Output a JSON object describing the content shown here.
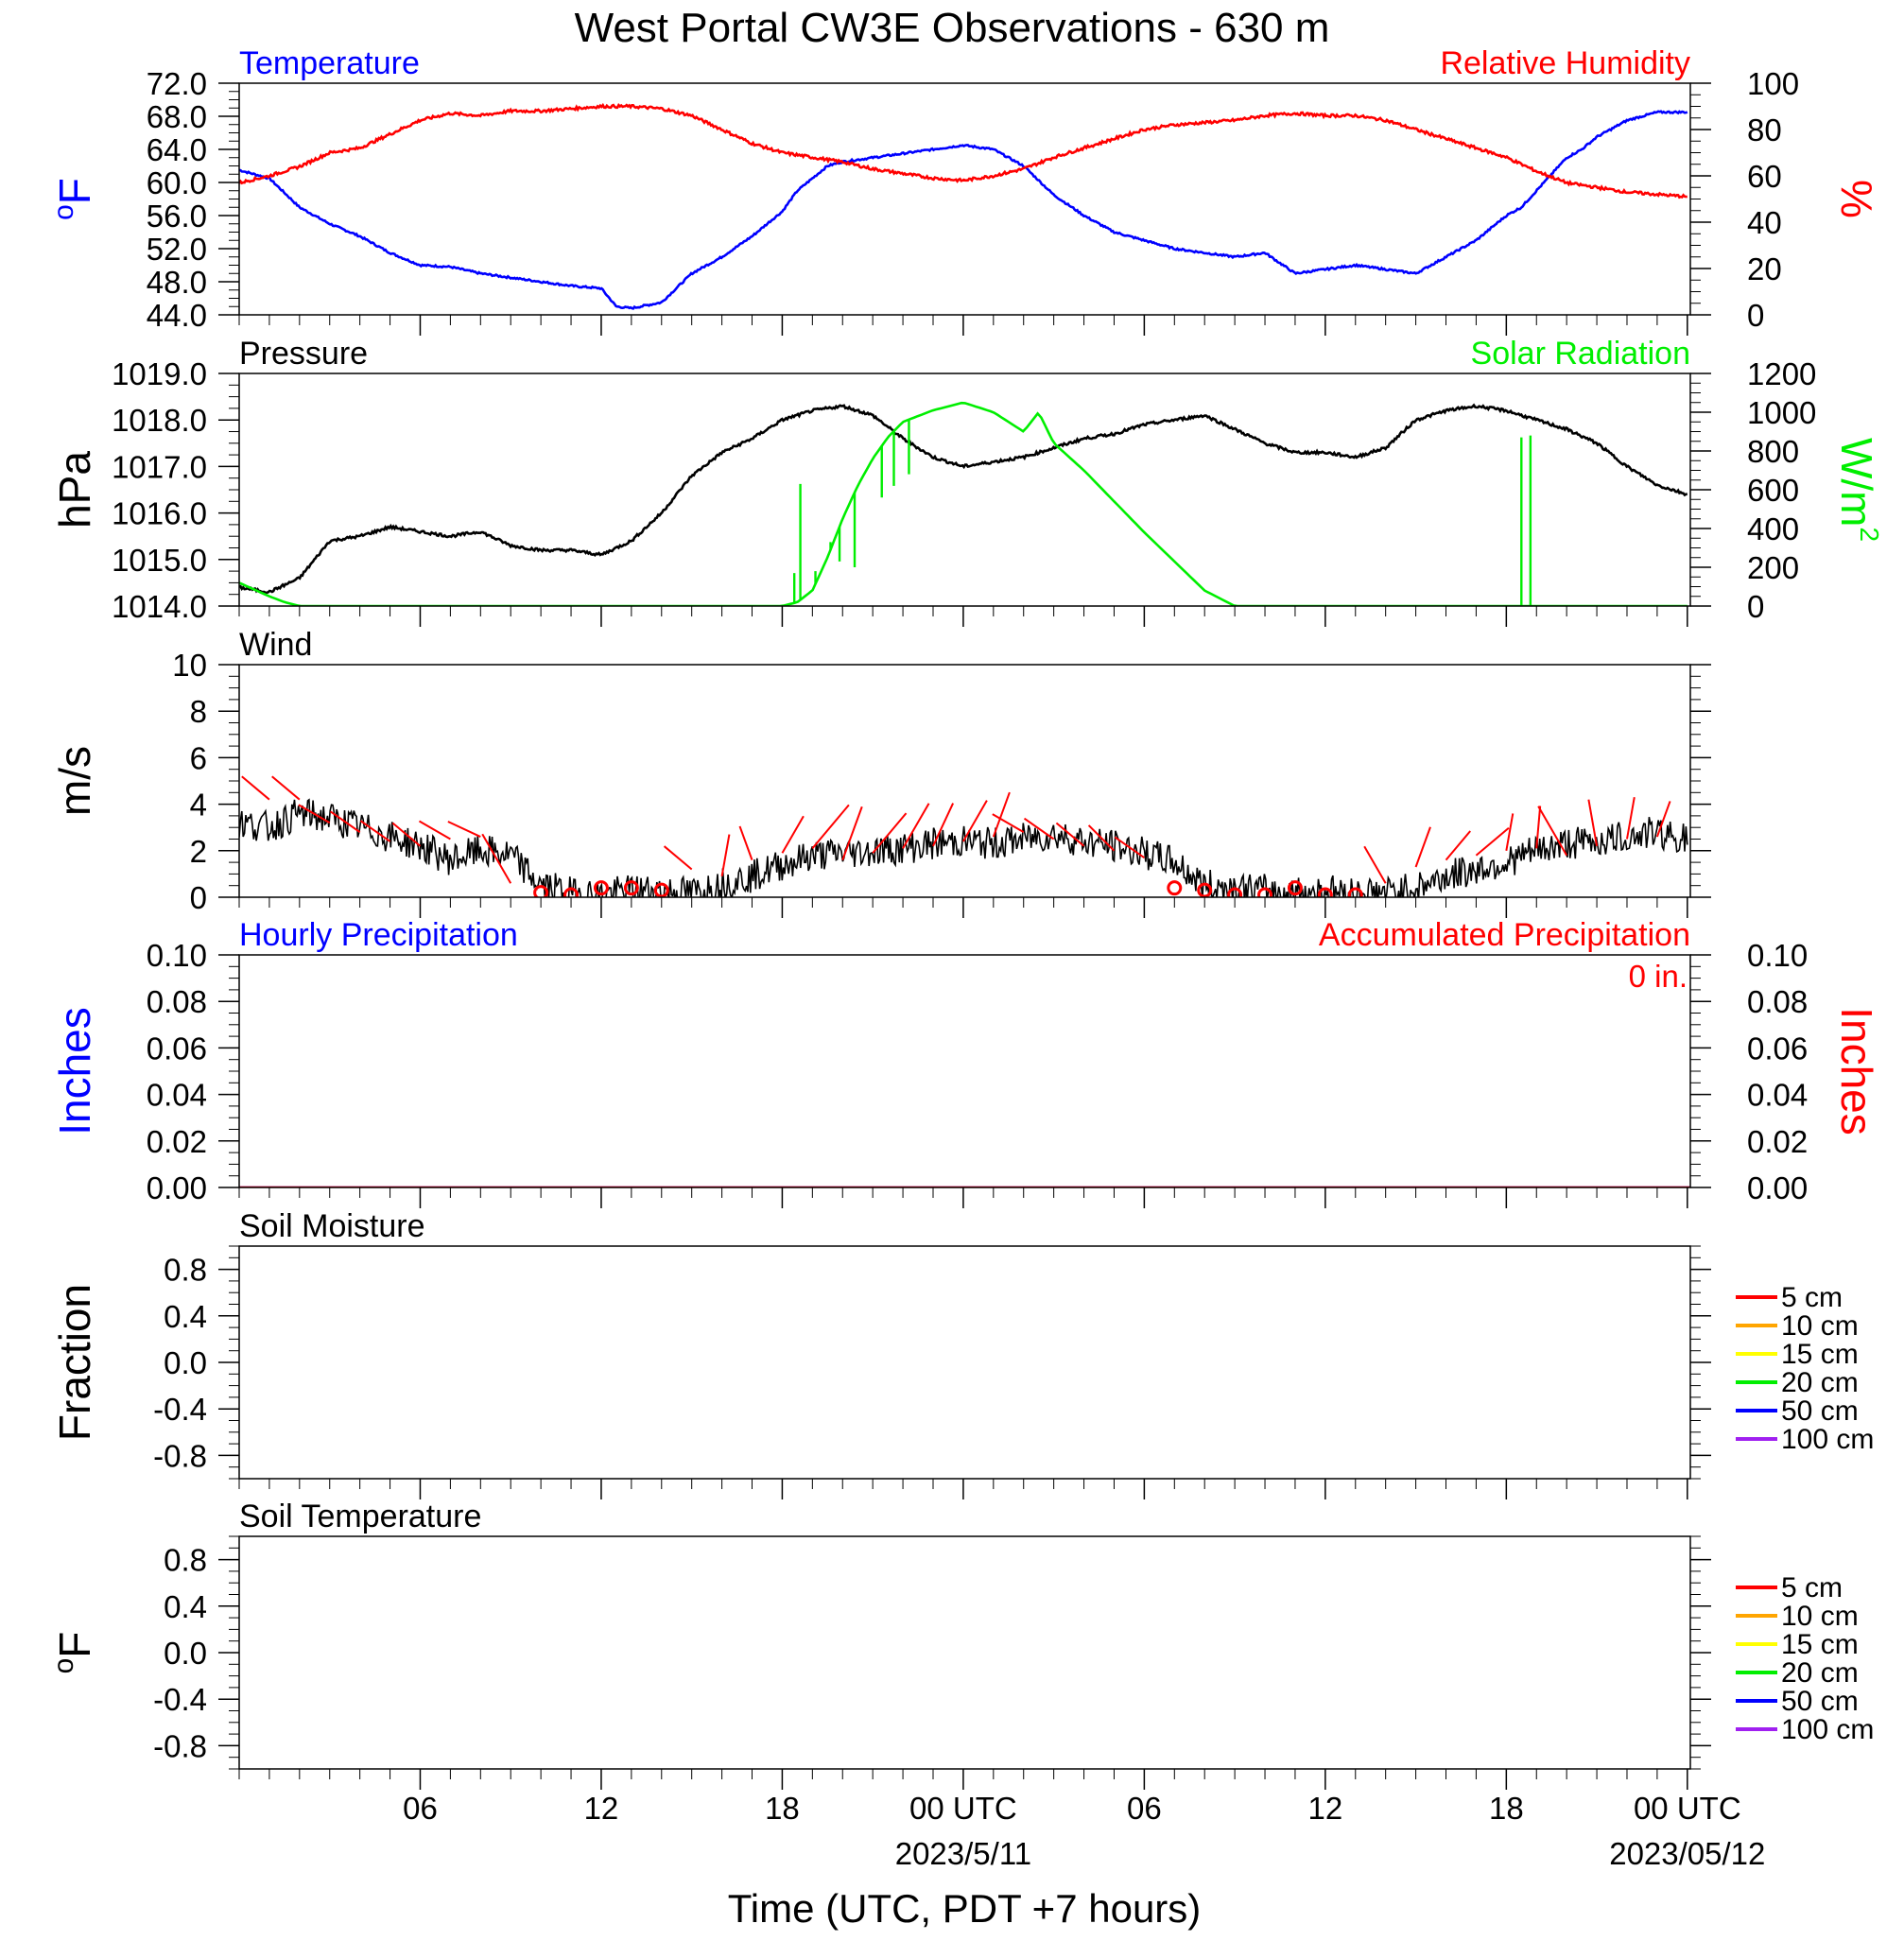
{
  "title": "West Portal CW3E Observations - 630 m",
  "x_axis": {
    "title": "Time (UTC, PDT +7 hours)",
    "ticks": [
      {
        "hour": 6,
        "label": "06"
      },
      {
        "hour": 12,
        "label": "12"
      },
      {
        "hour": 18,
        "label": "18"
      },
      {
        "hour": 24,
        "label": "00 UTC",
        "sub": "2023/5/11"
      },
      {
        "hour": 30,
        "label": "06"
      },
      {
        "hour": 36,
        "label": "12"
      },
      {
        "hour": 42,
        "label": "18"
      },
      {
        "hour": 48,
        "label": "00 UTC",
        "sub": "2023/05/12"
      }
    ],
    "range_hours": [
      0,
      48.1
    ]
  },
  "colors": {
    "temperature": "#0000ff",
    "humidity": "#ff0000",
    "pressure": "#000000",
    "solar": "#00ee00",
    "wind": "#000000",
    "barb": "#ff0000",
    "hourly_precip": "#0000ff",
    "accum_precip": "#ff0000"
  },
  "chart_data": [
    {
      "type": "line",
      "id": "temp-rh",
      "left_title": "Temperature",
      "right_title": "Relative Humidity",
      "left_ylabel": "oF",
      "right_ylabel": "%",
      "left_ticks": [
        "44.0",
        "48.0",
        "52.0",
        "56.0",
        "60.0",
        "64.0",
        "68.0",
        "72.0"
      ],
      "left_ylim": [
        44,
        72
      ],
      "right_ticks": [
        "0",
        "20",
        "40",
        "60",
        "80",
        "100"
      ],
      "right_ylim": [
        0,
        100
      ],
      "series": [
        {
          "name": "Temperature",
          "axis": "left",
          "color": "#0000ff",
          "x": [
            0,
            1,
            2,
            3,
            4,
            5,
            6,
            7,
            8,
            9,
            10,
            11,
            12,
            12.5,
            13,
            14,
            15,
            16,
            17,
            18,
            18.5,
            19,
            19.5,
            20,
            21,
            22,
            23,
            24,
            25,
            26,
            27,
            28,
            29,
            30,
            31,
            32,
            33,
            34,
            35,
            36,
            37,
            38,
            39,
            40,
            41,
            42,
            42.5,
            43,
            43.5,
            44,
            44.5,
            45,
            46,
            47,
            48
          ],
          "y": [
            61.5,
            60.5,
            57,
            55,
            53.5,
            51.5,
            50,
            49.8,
            49,
            48.5,
            48,
            47.5,
            47.2,
            45,
            44.8,
            45.5,
            49,
            51,
            53.5,
            56.5,
            59,
            60.5,
            62,
            62.5,
            63,
            63.5,
            64,
            64.5,
            64,
            62,
            58.5,
            56,
            54,
            53,
            52,
            51.5,
            51,
            51.5,
            49,
            49.5,
            50,
            49.5,
            49,
            51,
            53,
            56,
            57,
            59,
            61,
            63,
            64,
            65.5,
            67.5,
            68.5,
            68.5
          ]
        },
        {
          "name": "Relative Humidity",
          "axis": "right",
          "color": "#ff0000",
          "x": [
            0,
            1,
            2,
            3,
            4,
            5,
            6,
            7,
            8,
            9,
            10,
            11,
            12,
            13,
            14,
            15,
            16,
            17,
            18,
            19,
            20,
            21,
            22,
            23,
            24,
            25,
            26,
            27,
            28,
            29,
            30,
            31,
            32,
            33,
            34,
            35,
            36,
            37,
            38,
            39,
            40,
            41,
            42,
            43,
            44,
            45,
            46,
            47,
            48
          ],
          "y": [
            57,
            60,
            64,
            70,
            72,
            78,
            84,
            87,
            86,
            88,
            88,
            89,
            90,
            90,
            89,
            86,
            80,
            74,
            70,
            68,
            66,
            63,
            61,
            59,
            58,
            60,
            63,
            68,
            72,
            76,
            80,
            82,
            83,
            84,
            86,
            87,
            86,
            86,
            84,
            80,
            76,
            72,
            68,
            62,
            57,
            55,
            53,
            52,
            51
          ]
        }
      ]
    },
    {
      "type": "line",
      "id": "pressure-solar",
      "left_title": "Pressure",
      "right_title": "Solar Radiation",
      "left_ylabel": "hPa",
      "right_ylabel": "W/m",
      "right_ylabel_sup": "2",
      "left_ticks": [
        "1014.0",
        "1015.0",
        "1016.0",
        "1017.0",
        "1018.0",
        "1019.0"
      ],
      "left_ylim": [
        1014,
        1019
      ],
      "right_ticks": [
        "0",
        "200",
        "400",
        "600",
        "800",
        "1000",
        "1200"
      ],
      "right_ylim": [
        0,
        1200
      ],
      "series": [
        {
          "name": "Pressure",
          "axis": "left",
          "color": "#000000",
          "x": [
            0,
            1,
            2,
            3,
            4,
            5,
            6,
            7,
            8,
            9,
            10,
            11,
            12,
            13,
            14,
            15,
            16,
            17,
            18,
            19,
            20,
            21,
            22,
            23,
            24,
            25,
            26,
            27,
            28,
            29,
            30,
            31,
            32,
            33,
            34,
            35,
            36,
            37,
            38,
            39,
            40,
            41,
            42,
            43,
            44,
            45,
            46,
            47,
            48
          ],
          "y": [
            1014.4,
            1014.3,
            1014.6,
            1015.4,
            1015.5,
            1015.7,
            1015.6,
            1015.5,
            1015.6,
            1015.3,
            1015.2,
            1015.2,
            1015.1,
            1015.4,
            1016.0,
            1016.8,
            1017.3,
            1017.6,
            1018.0,
            1018.2,
            1018.3,
            1018.1,
            1017.6,
            1017.2,
            1017.0,
            1017.1,
            1017.2,
            1017.4,
            1017.6,
            1017.7,
            1017.9,
            1018.0,
            1018.1,
            1017.8,
            1017.5,
            1017.3,
            1017.3,
            1017.2,
            1017.4,
            1018.0,
            1018.2,
            1018.3,
            1018.2,
            1018.0,
            1017.8,
            1017.5,
            1017.0,
            1016.6,
            1016.4
          ]
        },
        {
          "name": "Solar Radiation",
          "axis": "right",
          "color": "#00ee00",
          "x": [
            0,
            1,
            1.5,
            2,
            3,
            4,
            5,
            6,
            7,
            8,
            9,
            10,
            11,
            12,
            12.5,
            13,
            14,
            15,
            16,
            17,
            17.5,
            18,
            18.5,
            19,
            19.5,
            20,
            20.5,
            21,
            21.5,
            22,
            23,
            24,
            25,
            26,
            26.5,
            27,
            28,
            29,
            30,
            31,
            32,
            33,
            34,
            35,
            36,
            36.5,
            37,
            38,
            39,
            40,
            41,
            42,
            43,
            44,
            45,
            46,
            47,
            48
          ],
          "y": [
            120,
            50,
            20,
            0,
            0,
            0,
            0,
            0,
            0,
            0,
            0,
            0,
            0,
            0,
            0,
            0,
            0,
            0,
            0,
            0,
            0,
            0,
            20,
            80,
            250,
            450,
            620,
            760,
            870,
            950,
            1010,
            1050,
            1000,
            900,
            1000,
            840,
            700,
            540,
            380,
            230,
            80,
            0,
            0,
            0,
            0,
            0,
            0,
            0,
            0,
            0,
            0,
            0,
            0,
            0,
            0,
            0,
            0,
            0
          ]
        }
      ]
    },
    {
      "type": "line",
      "id": "wind",
      "left_title": "Wind",
      "left_ylabel": "m/s",
      "left_ticks": [
        "0",
        "2",
        "4",
        "6",
        "8",
        "10"
      ],
      "left_ylim": [
        0,
        10
      ],
      "series": [
        {
          "name": "Wind",
          "axis": "left",
          "color": "#000000",
          "x": [
            0,
            1,
            2,
            3,
            4,
            5,
            6,
            7,
            8,
            9,
            10,
            11,
            12,
            13,
            14,
            15,
            16,
            17,
            18,
            19,
            20,
            21,
            22,
            23,
            24,
            25,
            26,
            27,
            28,
            29,
            30,
            31,
            32,
            33,
            34,
            35,
            36,
            37,
            38,
            39,
            40,
            41,
            42,
            43,
            44,
            45,
            46,
            47,
            48
          ],
          "y": [
            3.2,
            3.0,
            3.6,
            3.4,
            3.0,
            2.6,
            2.2,
            1.6,
            2.0,
            1.8,
            0.5,
            0.2,
            0.1,
            0.3,
            0.3,
            0.2,
            0.6,
            0.9,
            1.4,
            1.8,
            1.9,
            2.0,
            2.1,
            2.3,
            2.4,
            2.3,
            2.5,
            2.7,
            2.4,
            2.2,
            1.9,
            1.5,
            0.5,
            0.4,
            0.3,
            0.2,
            0.3,
            0.2,
            0.2,
            0.4,
            0.9,
            1.2,
            1.5,
            2.0,
            2.3,
            2.4,
            2.6,
            2.8,
            2.5
          ]
        },
        {
          "name": "barbs",
          "axis": "left",
          "color": "#ff0000",
          "hours": [
            1,
            2,
            3,
            4,
            5,
            6,
            7,
            8,
            9,
            10,
            11,
            12,
            13,
            14,
            15,
            16,
            17,
            18,
            19,
            20,
            21,
            22,
            23,
            24,
            25,
            26,
            27,
            28,
            29,
            30,
            31,
            32,
            33,
            34,
            35,
            36,
            37,
            38,
            39,
            40,
            41,
            42,
            43,
            44,
            45,
            46,
            47
          ],
          "speeds": [
            4.2,
            4.2,
            3.2,
            2.8,
            2.4,
            2.2,
            2.5,
            2.6,
            0.6,
            0.2,
            0.1,
            0.4,
            0.4,
            0.3,
            1.2,
            0.9,
            1.6,
            1.9,
            2.1,
            1.6,
            1.9,
            2.1,
            2.2,
            2.4,
            2.6,
            2.8,
            2.5,
            2.2,
            2.0,
            1.7,
            0.4,
            0.3,
            0.1,
            0.1,
            0.4,
            0.1,
            0.1,
            0.6,
            1.3,
            1.6,
            1.8,
            2.0,
            2.1,
            1.8,
            2.2,
            2.5,
            2.6
          ],
          "calm": [
            false,
            false,
            false,
            false,
            false,
            false,
            false,
            false,
            false,
            true,
            true,
            true,
            true,
            true,
            false,
            false,
            false,
            false,
            false,
            false,
            false,
            false,
            false,
            false,
            false,
            false,
            false,
            false,
            false,
            false,
            true,
            true,
            true,
            true,
            true,
            true,
            true,
            false,
            false,
            false,
            false,
            false,
            false,
            false,
            false,
            false,
            false
          ],
          "angles": [
            40,
            40,
            30,
            35,
            35,
            40,
            30,
            25,
            60,
            0,
            0,
            0,
            0,
            0,
            40,
            100,
            70,
            120,
            130,
            110,
            130,
            120,
            115,
            120,
            110,
            30,
            35,
            40,
            45,
            35,
            0,
            0,
            0,
            0,
            0,
            0,
            0,
            60,
            110,
            130,
            140,
            100,
            95,
            60,
            80,
            100,
            110
          ],
          "lengths": [
            38,
            38,
            38,
            38,
            38,
            38,
            38,
            38,
            60,
            0,
            0,
            0,
            0,
            0,
            38,
            45,
            38,
            45,
            60,
            60,
            55,
            55,
            50,
            50,
            50,
            38,
            38,
            38,
            38,
            38,
            0,
            0,
            0,
            0,
            0,
            0,
            0,
            45,
            45,
            40,
            45,
            40,
            45,
            60,
            50,
            45,
            40
          ]
        }
      ]
    },
    {
      "type": "line",
      "id": "precip",
      "left_title": "Hourly Precipitation",
      "right_title": "Accumulated Precipitation",
      "annotation": "0 in.",
      "left_ylabel": "Inches",
      "right_ylabel": "Inches",
      "left_ticks": [
        "0.00",
        "0.02",
        "0.04",
        "0.06",
        "0.08",
        "0.10"
      ],
      "left_ylim": [
        0,
        0.1
      ],
      "right_ticks": [
        "0.00",
        "0.02",
        "0.04",
        "0.06",
        "0.08",
        "0.10"
      ],
      "right_ylim": [
        0,
        0.1
      ],
      "series": [
        {
          "name": "Hourly Precipitation",
          "axis": "left",
          "color": "#0000ff",
          "x": [
            0,
            48.1
          ],
          "y": [
            0,
            0
          ]
        },
        {
          "name": "Accumulated Precipitation",
          "axis": "right",
          "color": "#ff0000",
          "x": [
            0,
            48.1
          ],
          "y": [
            0,
            0
          ]
        }
      ]
    },
    {
      "type": "line",
      "id": "soil-moisture",
      "left_title": "Soil Moisture",
      "left_ylabel": "Fraction",
      "left_ticks": [
        "-0.8",
        "-0.4",
        "0.0",
        "0.4",
        "0.8"
      ],
      "left_ylim": [
        -1,
        1
      ],
      "legend": [
        {
          "label": "5 cm",
          "color": "#ff0000"
        },
        {
          "label": "10 cm",
          "color": "#ffa500"
        },
        {
          "label": "15 cm",
          "color": "#ffff00"
        },
        {
          "label": "20 cm",
          "color": "#00ee00"
        },
        {
          "label": "50 cm",
          "color": "#0000ff"
        },
        {
          "label": "100 cm",
          "color": "#a020f0"
        }
      ],
      "series": []
    },
    {
      "type": "line",
      "id": "soil-temperature",
      "left_title": "Soil Temperature",
      "left_ylabel": "oF",
      "left_ticks": [
        "-0.8",
        "-0.4",
        "0.0",
        "0.4",
        "0.8"
      ],
      "left_ylim": [
        -1,
        1
      ],
      "legend": [
        {
          "label": "5 cm",
          "color": "#ff0000"
        },
        {
          "label": "10 cm",
          "color": "#ffa500"
        },
        {
          "label": "15 cm",
          "color": "#ffff00"
        },
        {
          "label": "20 cm",
          "color": "#00ee00"
        },
        {
          "label": "50 cm",
          "color": "#0000ff"
        },
        {
          "label": "100 cm",
          "color": "#a020f0"
        }
      ],
      "series": []
    }
  ]
}
